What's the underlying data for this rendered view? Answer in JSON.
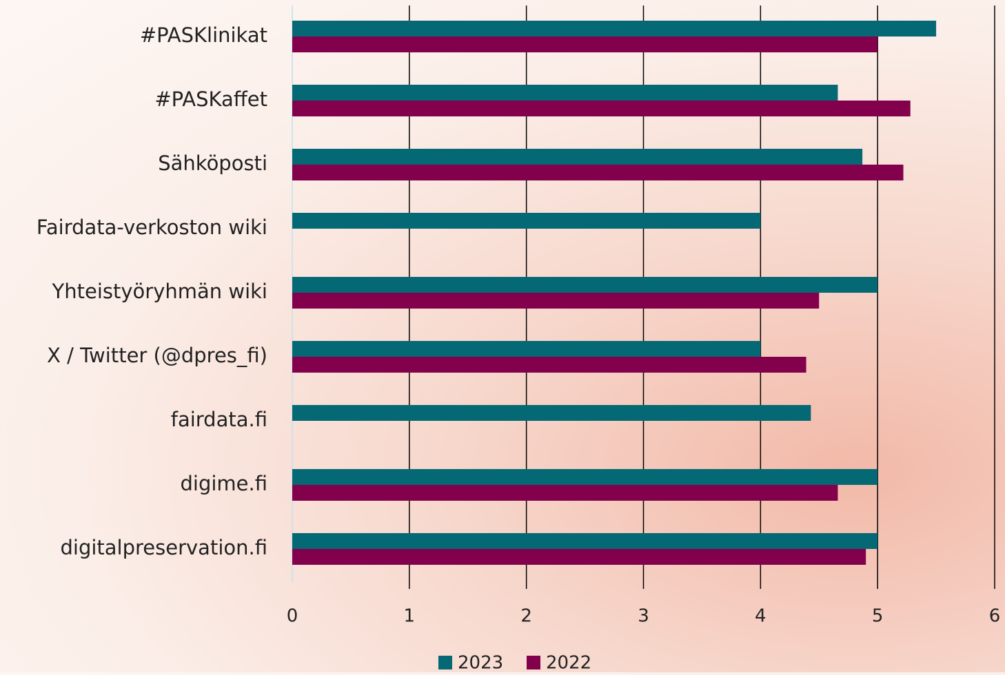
{
  "chart_data": {
    "type": "bar",
    "orientation": "horizontal",
    "categories": [
      "#PASKlinikat",
      "#PASKaffet",
      "Sähköposti",
      "Fairdata-verkoston wiki",
      "Yhteistyöryhmän wiki",
      "X / Twitter (@dpres_fi)",
      "fairdata.fi",
      "digime.fi",
      "digitalpreservation.fi"
    ],
    "series": [
      {
        "name": "2023",
        "color": "#056875",
        "values": [
          5.5,
          4.66,
          4.87,
          4.0,
          5.0,
          4.0,
          4.43,
          5.0,
          5.0
        ]
      },
      {
        "name": "2022",
        "color": "#83004c",
        "values": [
          5.0,
          5.28,
          5.22,
          null,
          4.5,
          4.39,
          null,
          4.66,
          4.9
        ]
      }
    ],
    "xlim": [
      0,
      6
    ],
    "xticks": [
      0,
      1,
      2,
      3,
      4,
      5,
      6
    ],
    "grid": true,
    "legend": "bottom"
  }
}
